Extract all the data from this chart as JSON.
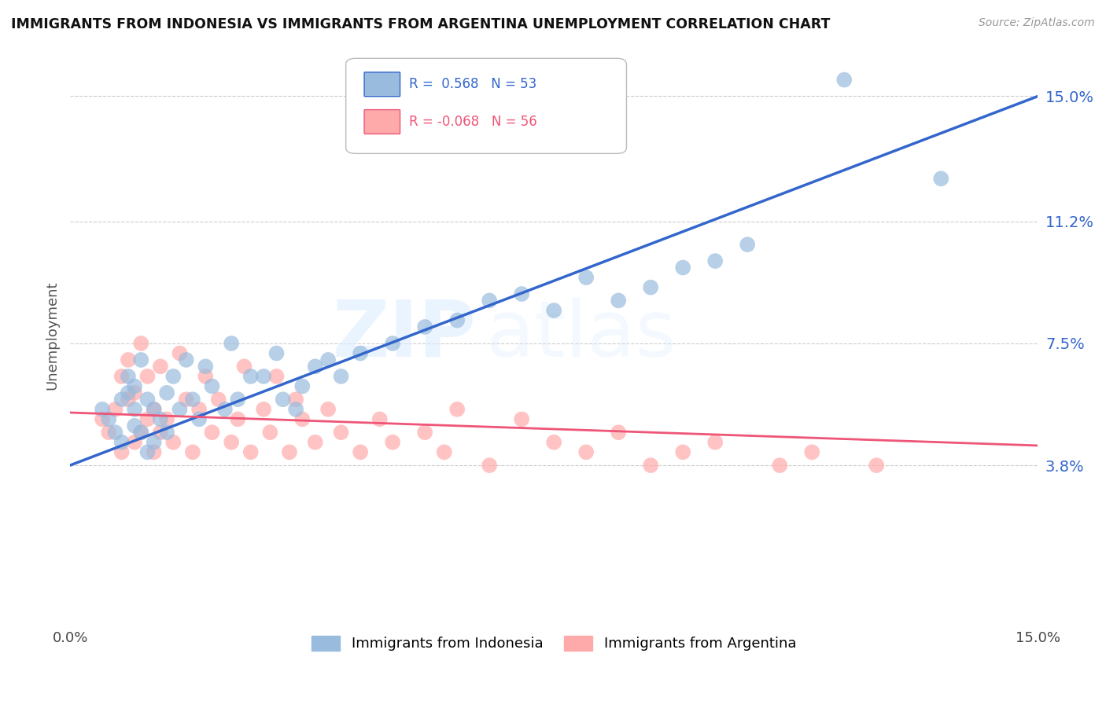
{
  "title": "IMMIGRANTS FROM INDONESIA VS IMMIGRANTS FROM ARGENTINA UNEMPLOYMENT CORRELATION CHART",
  "source": "Source: ZipAtlas.com",
  "ylabel": "Unemployment",
  "yticks": [
    0.038,
    0.075,
    0.112,
    0.15
  ],
  "ytick_labels": [
    "3.8%",
    "7.5%",
    "11.2%",
    "15.0%"
  ],
  "xlim": [
    0.0,
    0.15
  ],
  "ylim": [
    -0.01,
    0.165
  ],
  "indonesia_R": 0.568,
  "indonesia_N": 53,
  "argentina_R": -0.068,
  "argentina_N": 56,
  "blue_color": "#99BBDD",
  "pink_color": "#FFAAAA",
  "blue_line_color": "#3366CC",
  "pink_line_color": "#EE5577",
  "legend_label_indonesia": "Immigrants from Indonesia",
  "legend_label_argentina": "Immigrants from Argentina",
  "watermark_zip": "ZIP",
  "watermark_atlas": "atlas",
  "indo_line_x0": 0.0,
  "indo_line_y0": 0.038,
  "indo_line_x1": 0.15,
  "indo_line_y1": 0.15,
  "arg_line_x0": 0.0,
  "arg_line_y0": 0.054,
  "arg_line_x1": 0.15,
  "arg_line_y1": 0.044,
  "indonesia_scatter_x": [
    0.005,
    0.006,
    0.007,
    0.008,
    0.008,
    0.009,
    0.009,
    0.01,
    0.01,
    0.01,
    0.011,
    0.011,
    0.012,
    0.012,
    0.013,
    0.013,
    0.014,
    0.015,
    0.015,
    0.016,
    0.017,
    0.018,
    0.019,
    0.02,
    0.021,
    0.022,
    0.024,
    0.025,
    0.026,
    0.028,
    0.03,
    0.032,
    0.033,
    0.035,
    0.036,
    0.038,
    0.04,
    0.042,
    0.045,
    0.05,
    0.055,
    0.06,
    0.065,
    0.07,
    0.075,
    0.08,
    0.085,
    0.09,
    0.095,
    0.1,
    0.105,
    0.12,
    0.135
  ],
  "indonesia_scatter_y": [
    0.055,
    0.052,
    0.048,
    0.045,
    0.058,
    0.06,
    0.065,
    0.05,
    0.055,
    0.062,
    0.048,
    0.07,
    0.042,
    0.058,
    0.055,
    0.045,
    0.052,
    0.048,
    0.06,
    0.065,
    0.055,
    0.07,
    0.058,
    0.052,
    0.068,
    0.062,
    0.055,
    0.075,
    0.058,
    0.065,
    0.065,
    0.072,
    0.058,
    0.055,
    0.062,
    0.068,
    0.07,
    0.065,
    0.072,
    0.075,
    0.08,
    0.082,
    0.088,
    0.09,
    0.085,
    0.095,
    0.088,
    0.092,
    0.098,
    0.1,
    0.105,
    0.155,
    0.125
  ],
  "argentina_scatter_x": [
    0.005,
    0.006,
    0.007,
    0.008,
    0.008,
    0.009,
    0.009,
    0.01,
    0.01,
    0.011,
    0.011,
    0.012,
    0.012,
    0.013,
    0.013,
    0.014,
    0.014,
    0.015,
    0.016,
    0.017,
    0.018,
    0.019,
    0.02,
    0.021,
    0.022,
    0.023,
    0.025,
    0.026,
    0.027,
    0.028,
    0.03,
    0.031,
    0.032,
    0.034,
    0.035,
    0.036,
    0.038,
    0.04,
    0.042,
    0.045,
    0.048,
    0.05,
    0.055,
    0.058,
    0.06,
    0.065,
    0.07,
    0.075,
    0.08,
    0.085,
    0.09,
    0.095,
    0.1,
    0.11,
    0.115,
    0.125
  ],
  "argentina_scatter_y": [
    0.052,
    0.048,
    0.055,
    0.042,
    0.065,
    0.058,
    0.07,
    0.045,
    0.06,
    0.075,
    0.048,
    0.052,
    0.065,
    0.042,
    0.055,
    0.048,
    0.068,
    0.052,
    0.045,
    0.072,
    0.058,
    0.042,
    0.055,
    0.065,
    0.048,
    0.058,
    0.045,
    0.052,
    0.068,
    0.042,
    0.055,
    0.048,
    0.065,
    0.042,
    0.058,
    0.052,
    0.045,
    0.055,
    0.048,
    0.042,
    0.052,
    0.045,
    0.048,
    0.042,
    0.055,
    0.038,
    0.052,
    0.045,
    0.042,
    0.048,
    0.038,
    0.042,
    0.045,
    0.038,
    0.042,
    0.038
  ]
}
